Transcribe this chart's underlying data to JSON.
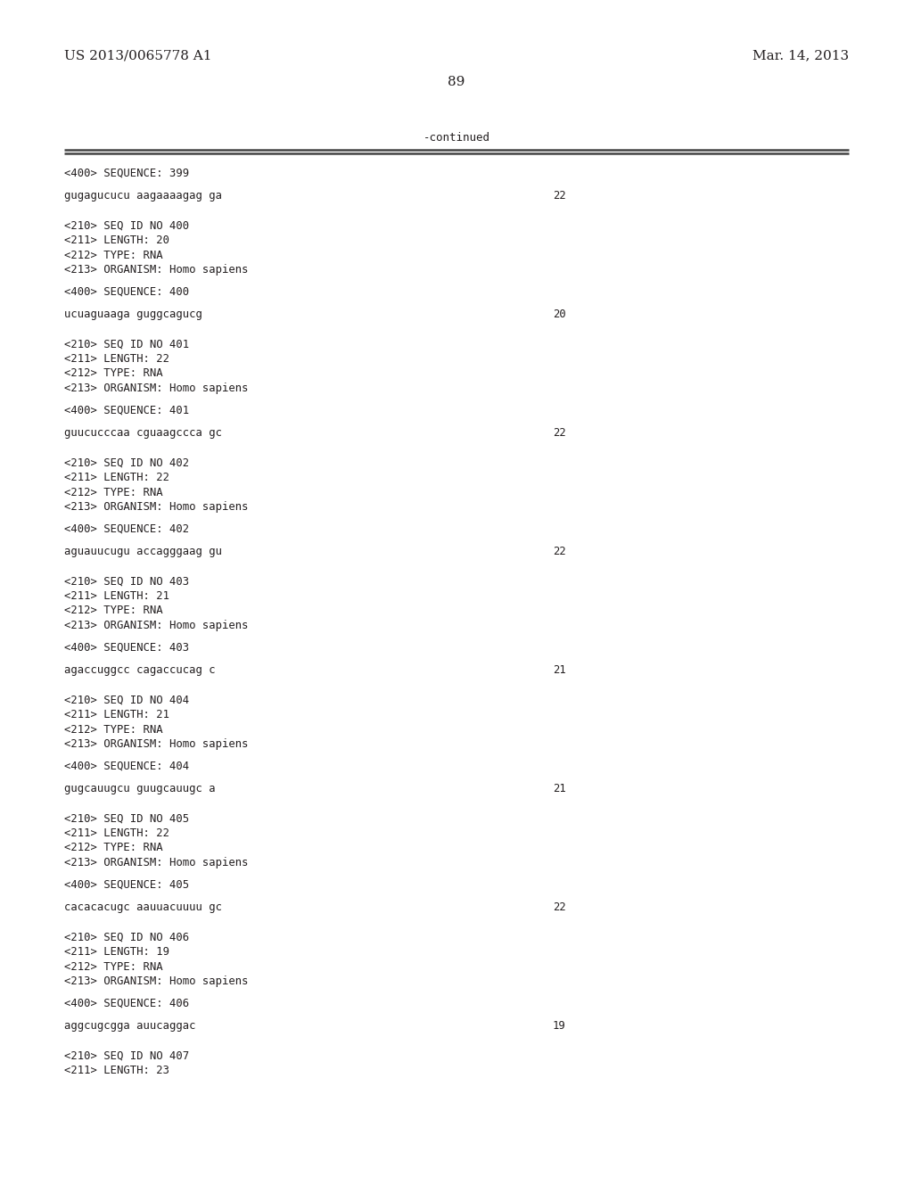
{
  "top_left": "US 2013/0065778 A1",
  "top_right": "Mar. 14, 2013",
  "page_number": "89",
  "continued_label": "-continued",
  "background_color": "#ffffff",
  "text_color": "#231f20",
  "lines": [
    {
      "type": "seq_tag",
      "text": "<400> SEQUENCE: 399"
    },
    {
      "type": "blank_small"
    },
    {
      "type": "sequence",
      "text": "gugagucucu aagaaaagag ga",
      "num": "22"
    },
    {
      "type": "blank_large"
    },
    {
      "type": "blank_small"
    },
    {
      "type": "meta",
      "text": "<210> SEQ ID NO 400"
    },
    {
      "type": "meta",
      "text": "<211> LENGTH: 20"
    },
    {
      "type": "meta",
      "text": "<212> TYPE: RNA"
    },
    {
      "type": "meta",
      "text": "<213> ORGANISM: Homo sapiens"
    },
    {
      "type": "blank_small"
    },
    {
      "type": "seq_tag",
      "text": "<400> SEQUENCE: 400"
    },
    {
      "type": "blank_small"
    },
    {
      "type": "sequence",
      "text": "ucuaguaaga guggcagucg",
      "num": "20"
    },
    {
      "type": "blank_large"
    },
    {
      "type": "blank_small"
    },
    {
      "type": "meta",
      "text": "<210> SEQ ID NO 401"
    },
    {
      "type": "meta",
      "text": "<211> LENGTH: 22"
    },
    {
      "type": "meta",
      "text": "<212> TYPE: RNA"
    },
    {
      "type": "meta",
      "text": "<213> ORGANISM: Homo sapiens"
    },
    {
      "type": "blank_small"
    },
    {
      "type": "seq_tag",
      "text": "<400> SEQUENCE: 401"
    },
    {
      "type": "blank_small"
    },
    {
      "type": "sequence",
      "text": "guucucccaa cguaagccca gc",
      "num": "22"
    },
    {
      "type": "blank_large"
    },
    {
      "type": "blank_small"
    },
    {
      "type": "meta",
      "text": "<210> SEQ ID NO 402"
    },
    {
      "type": "meta",
      "text": "<211> LENGTH: 22"
    },
    {
      "type": "meta",
      "text": "<212> TYPE: RNA"
    },
    {
      "type": "meta",
      "text": "<213> ORGANISM: Homo sapiens"
    },
    {
      "type": "blank_small"
    },
    {
      "type": "seq_tag",
      "text": "<400> SEQUENCE: 402"
    },
    {
      "type": "blank_small"
    },
    {
      "type": "sequence",
      "text": "aguauucugu accagggaag gu",
      "num": "22"
    },
    {
      "type": "blank_large"
    },
    {
      "type": "blank_small"
    },
    {
      "type": "meta",
      "text": "<210> SEQ ID NO 403"
    },
    {
      "type": "meta",
      "text": "<211> LENGTH: 21"
    },
    {
      "type": "meta",
      "text": "<212> TYPE: RNA"
    },
    {
      "type": "meta",
      "text": "<213> ORGANISM: Homo sapiens"
    },
    {
      "type": "blank_small"
    },
    {
      "type": "seq_tag",
      "text": "<400> SEQUENCE: 403"
    },
    {
      "type": "blank_small"
    },
    {
      "type": "sequence",
      "text": "agaccuggcc cagaccucag c",
      "num": "21"
    },
    {
      "type": "blank_large"
    },
    {
      "type": "blank_small"
    },
    {
      "type": "meta",
      "text": "<210> SEQ ID NO 404"
    },
    {
      "type": "meta",
      "text": "<211> LENGTH: 21"
    },
    {
      "type": "meta",
      "text": "<212> TYPE: RNA"
    },
    {
      "type": "meta",
      "text": "<213> ORGANISM: Homo sapiens"
    },
    {
      "type": "blank_small"
    },
    {
      "type": "seq_tag",
      "text": "<400> SEQUENCE: 404"
    },
    {
      "type": "blank_small"
    },
    {
      "type": "sequence",
      "text": "gugcauugcu guugcauugc a",
      "num": "21"
    },
    {
      "type": "blank_large"
    },
    {
      "type": "blank_small"
    },
    {
      "type": "meta",
      "text": "<210> SEQ ID NO 405"
    },
    {
      "type": "meta",
      "text": "<211> LENGTH: 22"
    },
    {
      "type": "meta",
      "text": "<212> TYPE: RNA"
    },
    {
      "type": "meta",
      "text": "<213> ORGANISM: Homo sapiens"
    },
    {
      "type": "blank_small"
    },
    {
      "type": "seq_tag",
      "text": "<400> SEQUENCE: 405"
    },
    {
      "type": "blank_small"
    },
    {
      "type": "sequence",
      "text": "cacacacugc aauuacuuuu gc",
      "num": "22"
    },
    {
      "type": "blank_large"
    },
    {
      "type": "blank_small"
    },
    {
      "type": "meta",
      "text": "<210> SEQ ID NO 406"
    },
    {
      "type": "meta",
      "text": "<211> LENGTH: 19"
    },
    {
      "type": "meta",
      "text": "<212> TYPE: RNA"
    },
    {
      "type": "meta",
      "text": "<213> ORGANISM: Homo sapiens"
    },
    {
      "type": "blank_small"
    },
    {
      "type": "seq_tag",
      "text": "<400> SEQUENCE: 406"
    },
    {
      "type": "blank_small"
    },
    {
      "type": "sequence",
      "text": "aggcugcgga auucaggac",
      "num": "19"
    },
    {
      "type": "blank_large"
    },
    {
      "type": "blank_small"
    },
    {
      "type": "meta",
      "text": "<210> SEQ ID NO 407"
    },
    {
      "type": "meta",
      "text": "<211> LENGTH: 23"
    }
  ]
}
